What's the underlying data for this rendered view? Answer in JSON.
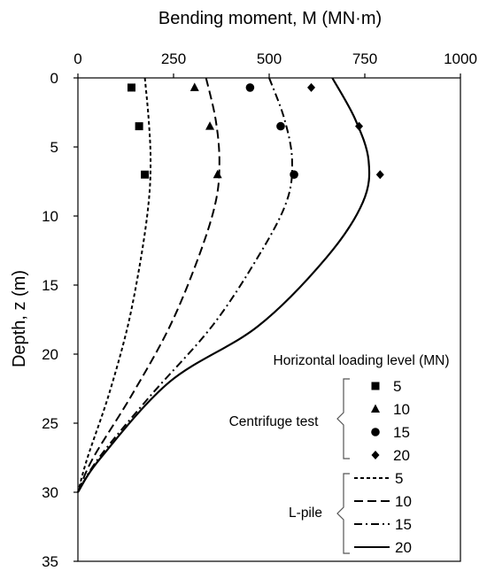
{
  "chart_data": {
    "type": "line",
    "xlabel": "Bending moment, M (MN·m)",
    "ylabel": "Depth, z (m)",
    "x_axis_position": "top",
    "y_axis_inverted": true,
    "xlim": [
      0,
      1000
    ],
    "ylim": [
      0,
      35
    ],
    "xticks": [
      0,
      250,
      500,
      750,
      1000
    ],
    "yticks": [
      0,
      5,
      10,
      15,
      20,
      25,
      30,
      35
    ],
    "grid": false,
    "legend": {
      "title": "Horizontal loading level (MN)",
      "position": "bottom-right",
      "groups": [
        {
          "label": "Centrifuge test",
          "entries": [
            "5",
            "10",
            "15",
            "20"
          ]
        },
        {
          "label": "L-pile",
          "entries": [
            "5",
            "10",
            "15",
            "20"
          ]
        }
      ]
    },
    "marker_series": [
      {
        "name": "5",
        "group": "Centrifuge test",
        "marker": "square",
        "points": [
          [
            140,
            0.7
          ],
          [
            160,
            3.5
          ],
          [
            175,
            7.0
          ]
        ]
      },
      {
        "name": "10",
        "group": "Centrifuge test",
        "marker": "triangle",
        "points": [
          [
            305,
            0.7
          ],
          [
            345,
            3.5
          ],
          [
            365,
            7.0
          ]
        ]
      },
      {
        "name": "15",
        "group": "Centrifuge test",
        "marker": "circle",
        "points": [
          [
            450,
            0.7
          ],
          [
            530,
            3.5
          ],
          [
            565,
            7.0
          ]
        ]
      },
      {
        "name": "20",
        "group": "Centrifuge test",
        "marker": "diamond",
        "points": [
          [
            610,
            0.7
          ],
          [
            735,
            3.5
          ],
          [
            790,
            7.0
          ]
        ]
      }
    ],
    "line_series": [
      {
        "name": "5",
        "group": "L-pile",
        "dash": "short-dash",
        "points": [
          [
            175,
            0
          ],
          [
            185,
            3
          ],
          [
            190,
            6
          ],
          [
            185,
            9
          ],
          [
            165,
            13
          ],
          [
            130,
            18
          ],
          [
            80,
            23
          ],
          [
            25,
            27.5
          ],
          [
            0,
            30
          ]
        ]
      },
      {
        "name": "10",
        "group": "L-pile",
        "dash": "long-dash",
        "points": [
          [
            335,
            0
          ],
          [
            360,
            3
          ],
          [
            370,
            6
          ],
          [
            360,
            9
          ],
          [
            315,
            13
          ],
          [
            240,
            18
          ],
          [
            140,
            23
          ],
          [
            40,
            27.5
          ],
          [
            0,
            30
          ]
        ]
      },
      {
        "name": "15",
        "group": "L-pile",
        "dash": "dash-dot",
        "points": [
          [
            500,
            0
          ],
          [
            540,
            3
          ],
          [
            560,
            6
          ],
          [
            545,
            9
          ],
          [
            470,
            13
          ],
          [
            350,
            18
          ],
          [
            190,
            23
          ],
          [
            55,
            27.5
          ],
          [
            0,
            30
          ]
        ]
      },
      {
        "name": "20",
        "group": "L-pile",
        "dash": "solid",
        "points": [
          [
            665,
            0
          ],
          [
            725,
            3
          ],
          [
            760,
            6
          ],
          [
            745,
            9
          ],
          [
            650,
            13
          ],
          [
            470,
            18
          ],
          [
            240,
            22
          ],
          [
            60,
            27.5
          ],
          [
            0,
            30
          ]
        ]
      }
    ]
  }
}
